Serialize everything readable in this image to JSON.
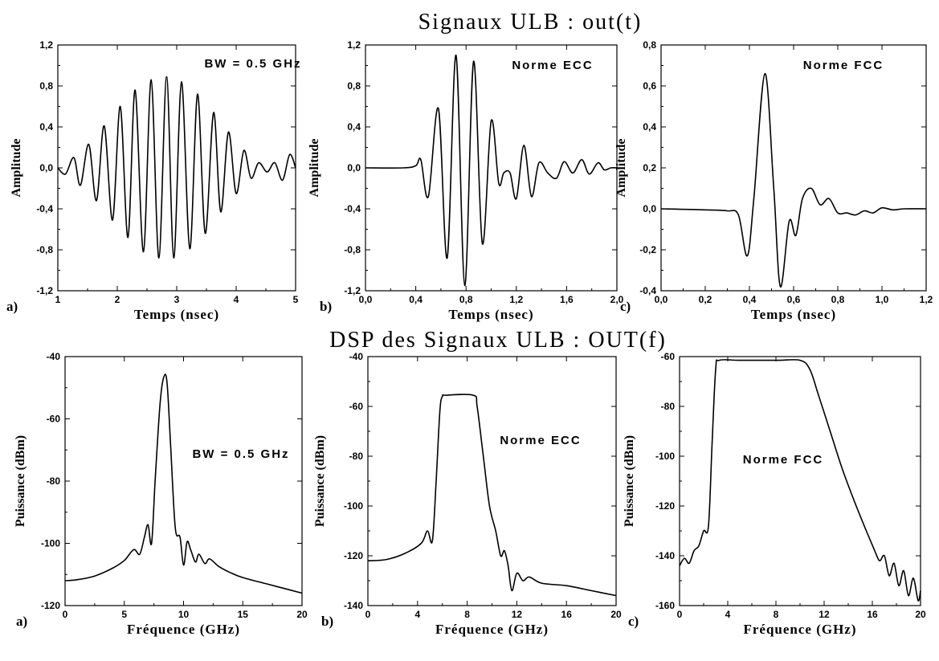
{
  "titles": {
    "top": "Signaux ULB : out(t)",
    "bottom": "DSP des Signaux ULB : OUT(f)"
  },
  "chart_data": [
    {
      "id": "ta",
      "panel_label": "a)",
      "type": "line",
      "xlabel": "Temps (nsec)",
      "ylabel": "Amplitude",
      "annotation": "BW = 0.5 GHz",
      "xlim": [
        1,
        5
      ],
      "ylim": [
        -1.2,
        1.2
      ],
      "xticks": [
        1,
        2,
        3,
        4,
        5
      ],
      "xtick_labels": [
        "1",
        "2",
        "3",
        "4",
        "5"
      ],
      "yticks": [
        -1.2,
        -0.8,
        -0.4,
        0.0,
        0.4,
        0.8,
        1.2
      ],
      "ytick_labels": [
        "-1,2",
        "-0,8",
        "-0,4",
        "0,0",
        "0,4",
        "0,8",
        "1,2"
      ],
      "x": [
        1.0,
        1.13,
        1.27,
        1.38,
        1.52,
        1.65,
        1.78,
        1.92,
        2.05,
        2.18,
        2.3,
        2.44,
        2.57,
        2.7,
        2.83,
        2.95,
        3.08,
        3.22,
        3.35,
        3.48,
        3.62,
        3.74,
        3.87,
        4.0,
        4.13,
        4.25,
        4.38,
        4.52,
        4.65,
        4.78,
        4.9,
        5.0
      ],
      "y": [
        0.0,
        -0.06,
        0.1,
        -0.17,
        0.23,
        -0.32,
        0.41,
        -0.51,
        0.6,
        -0.68,
        0.76,
        -0.82,
        0.86,
        -0.88,
        0.89,
        -0.88,
        0.84,
        -0.79,
        0.72,
        -0.64,
        0.54,
        -0.43,
        0.35,
        -0.25,
        0.17,
        -0.1,
        0.05,
        -0.04,
        0.05,
        -0.12,
        0.13,
        0.0
      ]
    },
    {
      "id": "tb",
      "panel_label": "b)",
      "type": "line",
      "xlabel": "Temps (nsec)",
      "ylabel": "Amplitude",
      "annotation": "Norme ECC",
      "xlim": [
        0,
        2
      ],
      "ylim": [
        -1.2,
        1.2
      ],
      "xticks": [
        0,
        0.4,
        0.8,
        1.2,
        1.6,
        2.0
      ],
      "xtick_labels": [
        "0,0",
        "0,4",
        "0,8",
        "1,2",
        "1,6",
        "2,0"
      ],
      "yticks": [
        -1.2,
        -0.8,
        -0.4,
        0.0,
        0.4,
        0.8,
        1.2
      ],
      "ytick_labels": [
        "-1,2",
        "-0,8",
        "-0,4",
        "0,0",
        "0,4",
        "0,8",
        "1,2"
      ],
      "x": [
        0.0,
        0.3,
        0.4,
        0.44,
        0.5,
        0.58,
        0.65,
        0.72,
        0.79,
        0.86,
        0.93,
        1.0,
        1.06,
        1.1,
        1.15,
        1.2,
        1.26,
        1.32,
        1.38,
        1.45,
        1.52,
        1.58,
        1.65,
        1.72,
        1.78,
        1.85,
        1.9,
        1.95,
        2.0
      ],
      "y": [
        0.0,
        0.0,
        0.02,
        0.08,
        -0.28,
        0.58,
        -0.88,
        1.1,
        -1.15,
        1.04,
        -0.74,
        0.46,
        -0.15,
        -0.05,
        -0.05,
        -0.3,
        0.22,
        -0.28,
        0.05,
        -0.05,
        -0.1,
        0.06,
        -0.05,
        0.08,
        -0.06,
        0.05,
        -0.02,
        0.0,
        0.0
      ]
    },
    {
      "id": "tc",
      "panel_label": "c)",
      "type": "line",
      "xlabel": "Temps (nsec)",
      "ylabel": "Amplitude",
      "annotation": "Norme FCC",
      "xlim": [
        0,
        1.2
      ],
      "ylim": [
        -0.4,
        0.8
      ],
      "xticks": [
        0,
        0.2,
        0.4,
        0.6,
        0.8,
        1.0,
        1.2
      ],
      "xtick_labels": [
        "0,0",
        "0,2",
        "0,4",
        "0,6",
        "0,8",
        "1,0",
        "1,2"
      ],
      "yticks": [
        -0.4,
        -0.2,
        0.0,
        0.2,
        0.4,
        0.6,
        0.8
      ],
      "ytick_labels": [
        "-0,4",
        "-0,2",
        "0,0",
        "0,2",
        "0,4",
        "0,6",
        "0,8"
      ],
      "x": [
        0.0,
        0.2,
        0.3,
        0.35,
        0.39,
        0.42,
        0.47,
        0.51,
        0.54,
        0.58,
        0.61,
        0.64,
        0.68,
        0.72,
        0.76,
        0.8,
        0.84,
        0.88,
        0.92,
        0.96,
        1.0,
        1.05,
        1.1,
        1.2
      ],
      "y": [
        0.0,
        -0.005,
        -0.01,
        -0.03,
        -0.23,
        0.05,
        0.66,
        0.1,
        -0.38,
        -0.06,
        -0.13,
        0.05,
        0.1,
        0.02,
        0.05,
        -0.02,
        -0.02,
        -0.03,
        -0.01,
        -0.02,
        0.005,
        -0.005,
        0.0,
        0.0
      ]
    },
    {
      "id": "fa",
      "panel_label": "a)",
      "type": "line",
      "xlabel": "Fréquence (GHz)",
      "ylabel": "Puissance (dBm)",
      "annotation": "BW = 0.5 GHz",
      "xlim": [
        0,
        20
      ],
      "ylim": [
        -120,
        -40
      ],
      "xticks": [
        0,
        5,
        10,
        15,
        20
      ],
      "xtick_labels": [
        "0",
        "5",
        "10",
        "15",
        "20"
      ],
      "yticks": [
        -120,
        -100,
        -80,
        -60,
        -40
      ],
      "ytick_labels": [
        "-120",
        "-100",
        "-80",
        "-60",
        "-40"
      ],
      "x": [
        0.0,
        1.0,
        2.5,
        4.0,
        5.0,
        5.8,
        6.3,
        6.7,
        7.0,
        7.3,
        7.6,
        8.0,
        8.3,
        8.6,
        8.9,
        9.3,
        9.7,
        10.0,
        10.3,
        10.6,
        11.0,
        11.3,
        11.8,
        12.2,
        13.0,
        14.0,
        15.0,
        17.0,
        18.5,
        20.0
      ],
      "y": [
        -112,
        -111.7,
        -110.5,
        -108,
        -105.5,
        -102,
        -103.5,
        -98,
        -94,
        -100,
        -80,
        -56,
        -47,
        -48,
        -68,
        -95,
        -98,
        -107,
        -99.5,
        -102,
        -106,
        -103.5,
        -106.5,
        -105,
        -107.5,
        -109.5,
        -111,
        -113,
        -114.5,
        -116
      ]
    },
    {
      "id": "fb",
      "panel_label": "b)",
      "type": "line",
      "xlabel": "Fréquence (GHz)",
      "ylabel": "Puissance (dBm)",
      "annotation": "Norme ECC",
      "xlim": [
        0,
        20
      ],
      "ylim": [
        -140,
        -40
      ],
      "xticks": [
        0,
        4,
        8,
        12,
        16,
        20
      ],
      "xtick_labels": [
        "0",
        "4",
        "8",
        "12",
        "16",
        "20"
      ],
      "yticks": [
        -140,
        -120,
        -100,
        -80,
        -60,
        -40
      ],
      "ytick_labels": [
        "-140",
        "-120",
        "-100",
        "-80",
        "-60",
        "-40"
      ],
      "x": [
        0.0,
        1.5,
        3.0,
        4.3,
        4.8,
        5.2,
        5.5,
        5.8,
        6.0,
        6.3,
        8.5,
        8.8,
        9.3,
        9.8,
        10.3,
        10.7,
        11.0,
        11.3,
        11.6,
        12.0,
        12.5,
        13.0,
        14.0,
        16.0,
        18.0,
        20.0
      ],
      "y": [
        -122,
        -121.5,
        -119,
        -115,
        -110,
        -114,
        -90,
        -62,
        -56,
        -55.5,
        -55.5,
        -60,
        -80,
        -100,
        -110,
        -120,
        -118,
        -124,
        -134,
        -127,
        -130,
        -128.5,
        -131,
        -132,
        -134,
        -136
      ]
    },
    {
      "id": "fc",
      "panel_label": "c)",
      "type": "line",
      "xlabel": "Fréquence (GHz)",
      "ylabel": "Puissance (dBm)",
      "annotation": "Norme FCC",
      "xlim": [
        0,
        20
      ],
      "ylim": [
        -160,
        -60
      ],
      "xticks": [
        0,
        4,
        8,
        12,
        16,
        20
      ],
      "xtick_labels": [
        "0",
        "4",
        "8",
        "12",
        "16",
        "20"
      ],
      "yticks": [
        -160,
        -140,
        -120,
        -100,
        -80,
        -60
      ],
      "ytick_labels": [
        "-160",
        "-140",
        "-120",
        "-100",
        "-80",
        "-60"
      ],
      "x": [
        0.0,
        0.4,
        0.8,
        1.2,
        1.6,
        2.0,
        2.4,
        2.7,
        3.0,
        3.3,
        5.0,
        8.0,
        10.0,
        10.8,
        11.5,
        12.5,
        13.5,
        14.5,
        15.5,
        16.2,
        16.6,
        17.0,
        17.4,
        17.8,
        18.2,
        18.6,
        19.0,
        19.4,
        19.8,
        20.0
      ],
      "y": [
        -144,
        -141,
        -143,
        -138,
        -136,
        -130,
        -128,
        -95,
        -65,
        -61.5,
        -61.5,
        -61.5,
        -61.5,
        -65,
        -75,
        -90,
        -105,
        -118,
        -130,
        -138,
        -142,
        -140,
        -148,
        -143,
        -152,
        -146,
        -156,
        -149,
        -158,
        -154
      ]
    }
  ]
}
